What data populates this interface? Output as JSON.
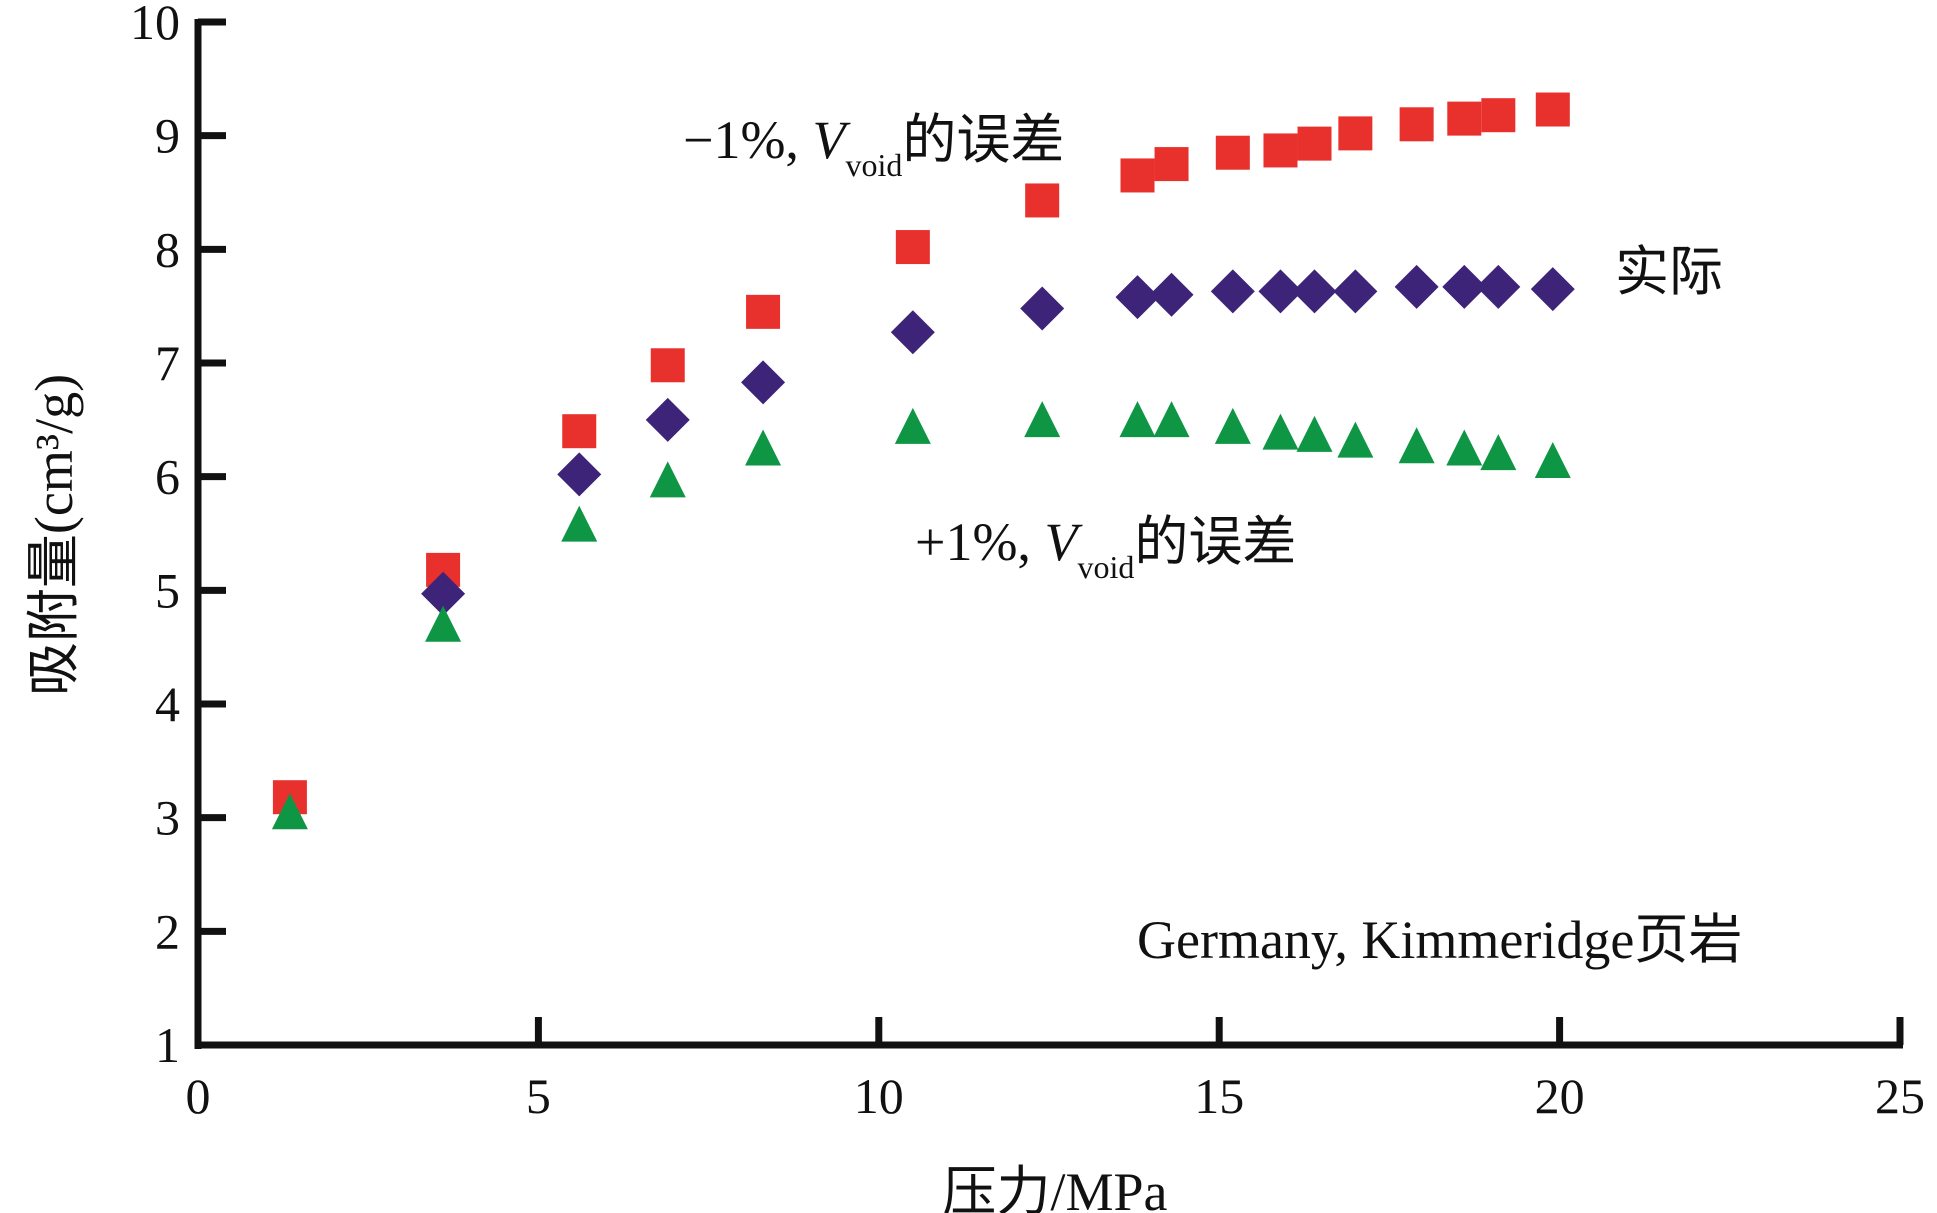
{
  "chart_data": {
    "type": "scatter",
    "xlabel": "压力/MPa",
    "ylabel": "吸附量(cm³/g)",
    "xlim": [
      0,
      25
    ],
    "ylim": [
      1,
      10
    ],
    "xticks": [
      "0",
      "5",
      "10",
      "15",
      "20",
      "25"
    ],
    "yticks": [
      "1",
      "2",
      "3",
      "4",
      "5",
      "6",
      "7",
      "8",
      "9",
      "10"
    ],
    "grid": false,
    "series": [
      {
        "name": "-1%, Vvoid的误差",
        "marker": "square",
        "color": "#e8302c",
        "x": [
          1.35,
          3.6,
          5.6,
          6.9,
          8.3,
          10.5,
          12.4,
          13.8,
          14.3,
          15.2,
          15.9,
          16.4,
          17.0,
          17.9,
          18.6,
          19.1,
          19.9
        ],
        "y": [
          3.18,
          5.18,
          6.4,
          6.98,
          7.45,
          8.02,
          8.43,
          8.65,
          8.75,
          8.85,
          8.87,
          8.93,
          9.02,
          9.1,
          9.15,
          9.18,
          9.23
        ]
      },
      {
        "name": "实际",
        "marker": "diamond",
        "color": "#3d2478",
        "x": [
          3.6,
          5.6,
          6.9,
          8.3,
          10.5,
          12.4,
          13.8,
          14.3,
          15.2,
          15.9,
          16.4,
          17.0,
          17.9,
          18.6,
          19.1,
          19.9
        ],
        "y": [
          4.97,
          6.02,
          6.5,
          6.83,
          7.27,
          7.48,
          7.58,
          7.6,
          7.63,
          7.63,
          7.63,
          7.63,
          7.67,
          7.67,
          7.67,
          7.65
        ]
      },
      {
        "name": "+1%, Vvoid的误差",
        "marker": "triangle",
        "color": "#0e9645",
        "x": [
          1.35,
          3.6,
          5.6,
          6.9,
          8.3,
          10.5,
          12.4,
          13.8,
          14.3,
          15.2,
          15.9,
          16.4,
          17.0,
          17.9,
          18.6,
          19.1,
          19.9
        ],
        "y": [
          3.03,
          4.68,
          5.56,
          5.95,
          6.23,
          6.42,
          6.48,
          6.48,
          6.48,
          6.42,
          6.37,
          6.35,
          6.3,
          6.25,
          6.23,
          6.19,
          6.12
        ]
      }
    ],
    "annotations": {
      "minus": {
        "prefix": "−1%, ",
        "v": "V",
        "sub": "void",
        "suffix": "的误差"
      },
      "actual": "实际",
      "plus": {
        "prefix": "+1%, ",
        "v": "V",
        "sub": "void",
        "suffix": "的误差"
      },
      "sample": "Germany, Kimmeridge页岩"
    }
  }
}
